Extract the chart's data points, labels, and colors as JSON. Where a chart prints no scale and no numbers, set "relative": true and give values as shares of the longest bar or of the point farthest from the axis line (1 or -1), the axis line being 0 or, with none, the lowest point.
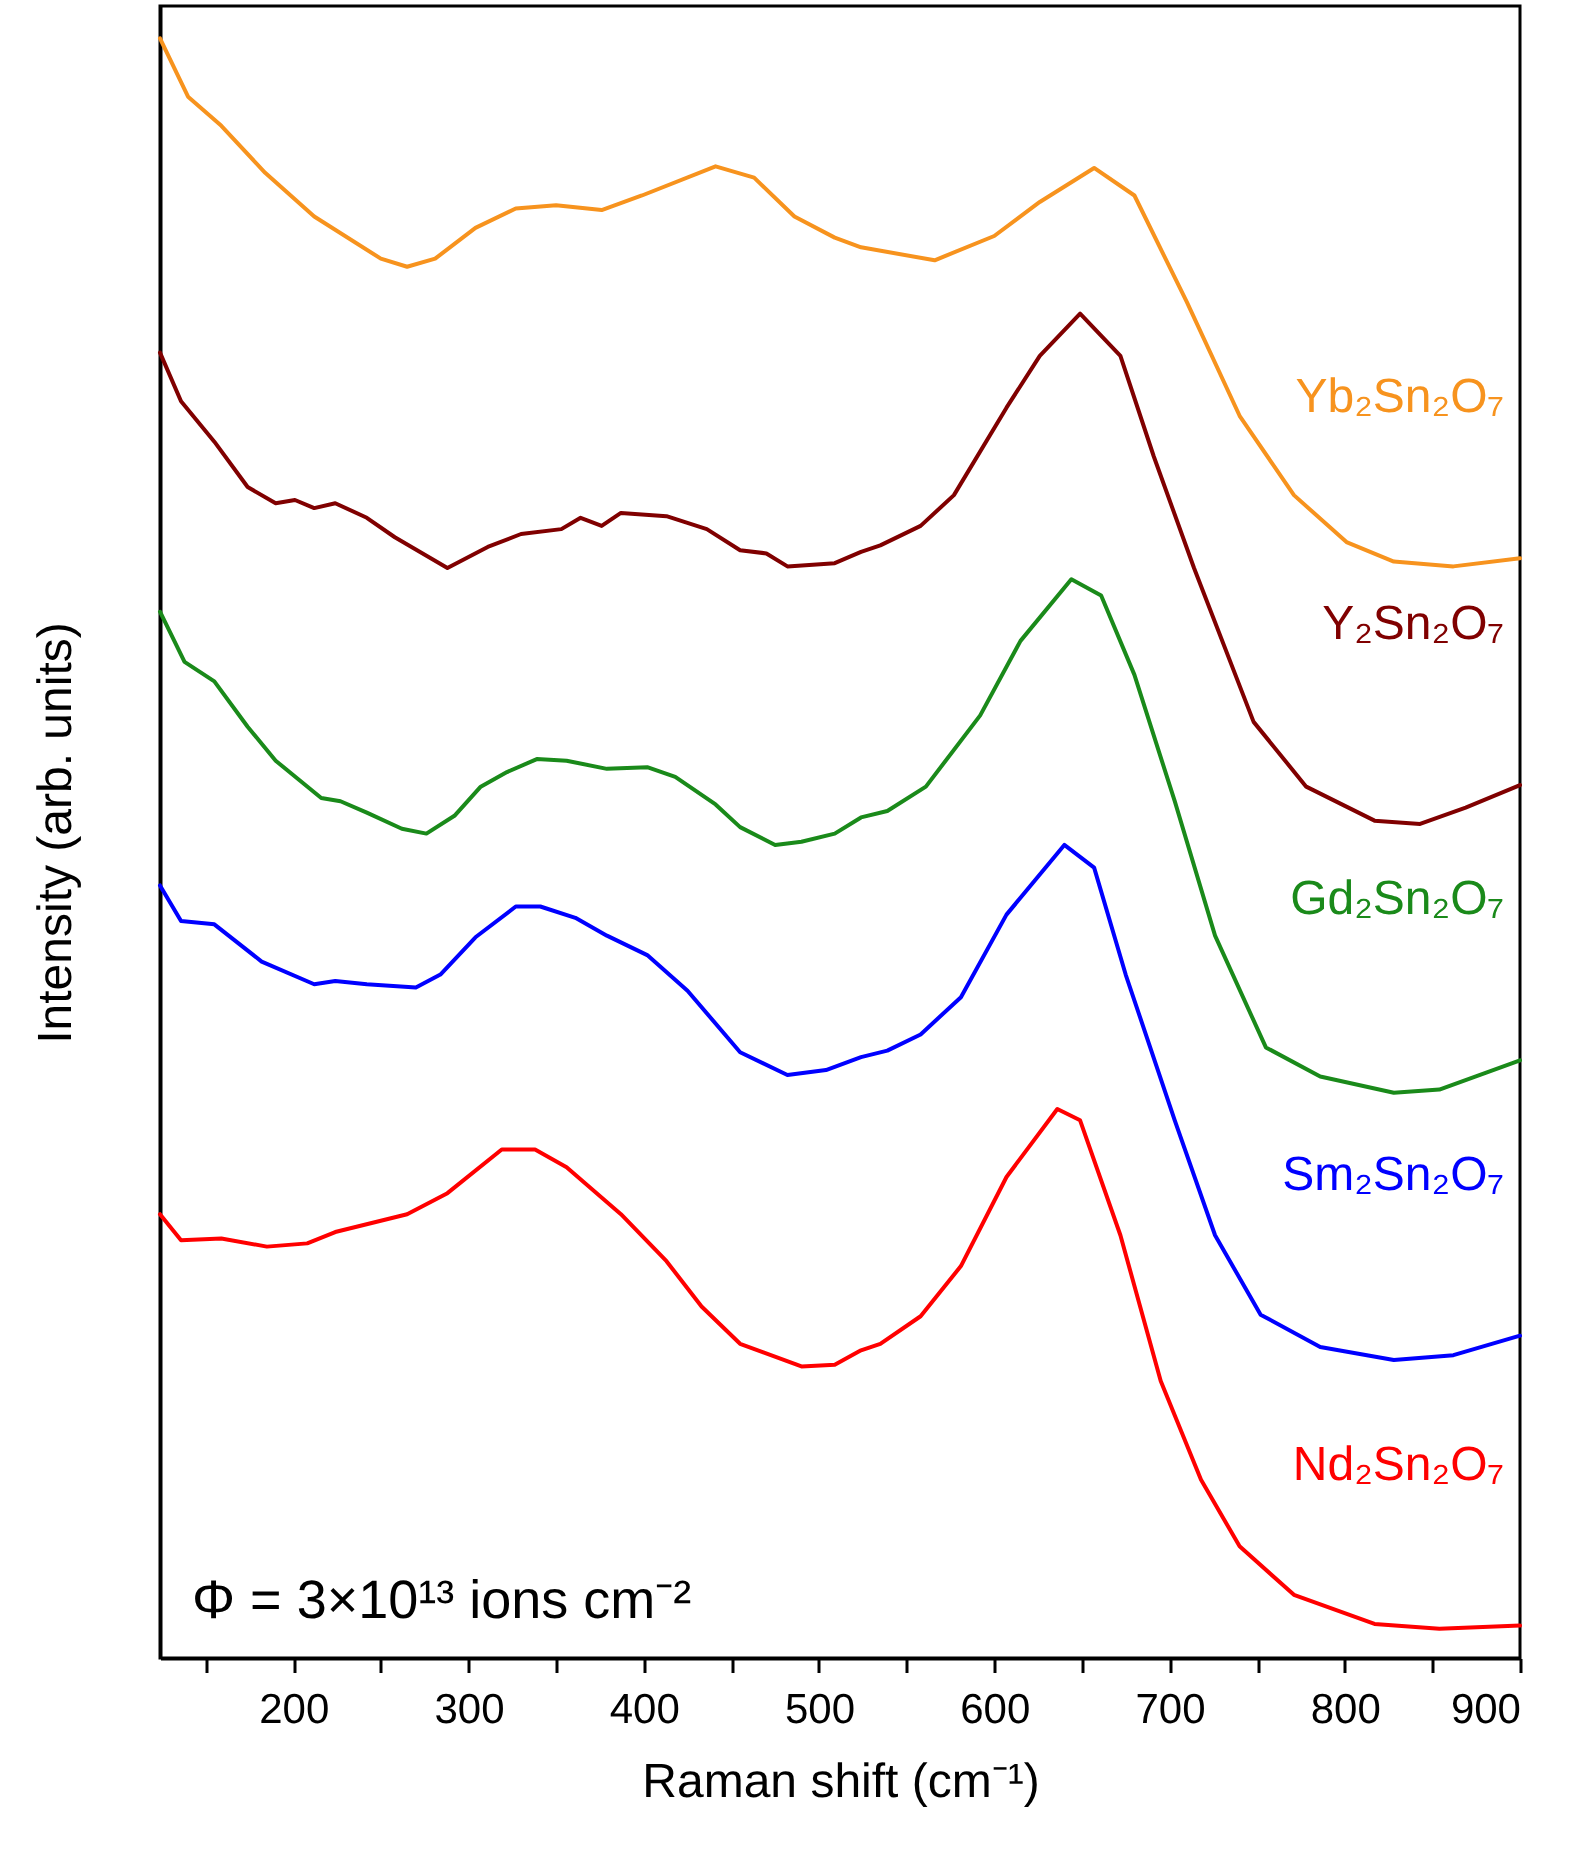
{
  "chart_data": {
    "type": "line",
    "relative": true,
    "xlabel": "Raman shift (cm⁻¹)",
    "ylabel": "Intensity (arb. units)",
    "xlim": [
      124,
      900
    ],
    "xticks": [
      {
        "value": 150,
        "label": null
      },
      200,
      {
        "value": 250,
        "label": null
      },
      300,
      {
        "value": 350,
        "label": null
      },
      400,
      {
        "value": 450,
        "label": null
      },
      500,
      {
        "value": 550,
        "label": null
      },
      600,
      {
        "value": 650,
        "label": null
      },
      700,
      {
        "value": 750,
        "label": null
      },
      800,
      {
        "value": 850,
        "label": null
      },
      900
    ],
    "annotations": [
      "Φ = 3×10¹³ ions cm⁻²"
    ],
    "line_style": "solid",
    "marker": "none",
    "grid": false,
    "series": [
      {
        "name": "Yb₂Sn₂O₇",
        "color": "#f7931e",
        "x": [
          124,
          140,
          159,
          184,
          212,
          250,
          265,
          281,
          304,
          327,
          350,
          376,
          399,
          441,
          463,
          486,
          509,
          524,
          566,
          600,
          626,
          657,
          680,
          710,
          740,
          771,
          801,
          828,
          862,
          900
        ],
        "values": [
          1.0,
          0.964,
          0.946,
          0.917,
          0.89,
          0.864,
          0.859,
          0.864,
          0.883,
          0.895,
          0.897,
          0.894,
          0.903,
          0.921,
          0.914,
          0.89,
          0.877,
          0.871,
          0.863,
          0.878,
          0.899,
          0.92,
          0.903,
          0.837,
          0.767,
          0.718,
          0.689,
          0.677,
          0.674,
          0.679
        ]
      },
      {
        "name": "Y₂Sn₂O₇",
        "color": "#800000",
        "x": [
          124,
          136,
          155,
          174,
          190,
          201,
          212,
          224,
          242,
          258,
          288,
          311,
          330,
          353,
          364,
          376,
          387,
          413,
          436,
          455,
          470,
          482,
          509,
          524,
          535,
          558,
          577,
          607,
          626,
          649,
          672,
          691,
          714,
          748,
          778,
          817,
          843,
          869,
          900
        ],
        "values": [
          0.806,
          0.776,
          0.751,
          0.723,
          0.713,
          0.715,
          0.71,
          0.713,
          0.704,
          0.692,
          0.673,
          0.686,
          0.694,
          0.697,
          0.704,
          0.699,
          0.707,
          0.705,
          0.697,
          0.684,
          0.682,
          0.674,
          0.676,
          0.683,
          0.687,
          0.699,
          0.718,
          0.772,
          0.804,
          0.83,
          0.804,
          0.742,
          0.673,
          0.578,
          0.538,
          0.517,
          0.515,
          0.525,
          0.539
        ]
      },
      {
        "name": "Gd₂Sn₂O₇",
        "color": "#1a8a1a",
        "x": [
          124,
          138,
          155,
          174,
          190,
          216,
          227,
          242,
          262,
          276,
          292,
          307,
          322,
          339,
          356,
          379,
          402,
          418,
          441,
          455,
          475,
          490,
          509,
          524,
          539,
          561,
          592,
          615,
          644,
          661,
          680,
          703,
          726,
          755,
          786,
          828,
          854,
          900
        ],
        "values": [
          0.646,
          0.615,
          0.603,
          0.575,
          0.554,
          0.531,
          0.529,
          0.522,
          0.512,
          0.509,
          0.52,
          0.538,
          0.547,
          0.555,
          0.554,
          0.549,
          0.55,
          0.544,
          0.527,
          0.513,
          0.502,
          0.504,
          0.509,
          0.519,
          0.523,
          0.538,
          0.582,
          0.628,
          0.666,
          0.656,
          0.607,
          0.529,
          0.446,
          0.377,
          0.359,
          0.349,
          0.351,
          0.369
        ]
      },
      {
        "name": "Sm₂Sn₂O₇",
        "color": "#0000ff",
        "x": [
          124,
          136,
          155,
          182,
          212,
          224,
          242,
          270,
          284,
          304,
          327,
          341,
          361,
          379,
          402,
          425,
          455,
          482,
          504,
          524,
          539,
          558,
          581,
          607,
          640,
          657,
          675,
          703,
          726,
          752,
          786,
          828,
          862,
          900
        ],
        "values": [
          0.477,
          0.455,
          0.453,
          0.43,
          0.416,
          0.418,
          0.416,
          0.414,
          0.422,
          0.445,
          0.464,
          0.464,
          0.457,
          0.446,
          0.434,
          0.412,
          0.374,
          0.36,
          0.363,
          0.371,
          0.375,
          0.385,
          0.408,
          0.459,
          0.502,
          0.488,
          0.422,
          0.332,
          0.261,
          0.212,
          0.192,
          0.184,
          0.187,
          0.199
        ]
      },
      {
        "name": "Nd₂Sn₂O₇",
        "color": "#ff0000",
        "x": [
          124,
          136,
          159,
          185,
          208,
          224,
          265,
          288,
          319,
          338,
          356,
          387,
          413,
          433,
          455,
          490,
          509,
          524,
          535,
          558,
          581,
          607,
          636,
          649,
          672,
          695,
          718,
          740,
          771,
          817,
          854,
          900
        ],
        "values": [
          0.274,
          0.258,
          0.259,
          0.254,
          0.256,
          0.263,
          0.274,
          0.287,
          0.314,
          0.314,
          0.303,
          0.274,
          0.245,
          0.217,
          0.194,
          0.18,
          0.181,
          0.19,
          0.194,
          0.211,
          0.242,
          0.297,
          0.339,
          0.332,
          0.261,
          0.171,
          0.11,
          0.069,
          0.039,
          0.021,
          0.018,
          0.02
        ]
      }
    ]
  }
}
